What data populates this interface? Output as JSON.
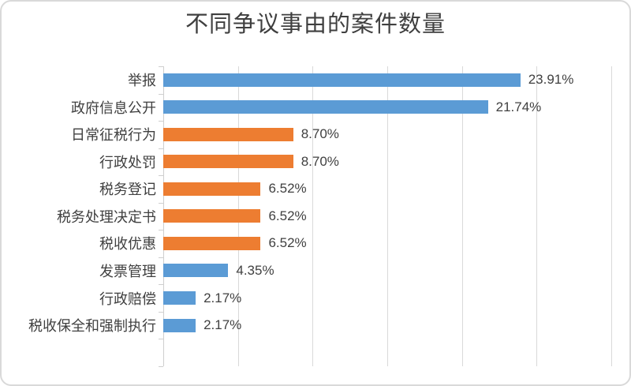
{
  "chart_data": {
    "type": "bar",
    "orientation": "horizontal",
    "title": "不同争议事由的案件数量",
    "categories": [
      "举报",
      "政府信息公开",
      "日常征税行为",
      "行政处罚",
      "税务登记",
      "税务处理决定书",
      "税收优惠",
      "发票管理",
      "行政赔偿",
      "税收保全和强制执行"
    ],
    "values": [
      23.91,
      21.74,
      8.7,
      8.7,
      6.52,
      6.52,
      6.52,
      4.35,
      2.17,
      2.17
    ],
    "value_labels": [
      "23.91%",
      "21.74%",
      "8.70%",
      "8.70%",
      "6.52%",
      "6.52%",
      "6.52%",
      "4.35%",
      "2.17%",
      "2.17%"
    ],
    "bar_colors": [
      "#5B9BD5",
      "#5B9BD5",
      "#ED7D31",
      "#ED7D31",
      "#ED7D31",
      "#ED7D31",
      "#ED7D31",
      "#5B9BD5",
      "#5B9BD5",
      "#5B9BD5"
    ],
    "xlabel": "",
    "ylabel": "",
    "xlim": [
      0,
      30
    ],
    "gridline_step_percent": 5,
    "grid": true,
    "legend_position": "none",
    "axis_tick_labels_visible": false,
    "empty_trailing_bands": 1
  },
  "colors": {
    "blue_series": "#5B9BD5",
    "orange_series": "#ED7D31",
    "gridline": "#D9D9D9",
    "axis": "#CFCFCF",
    "text": "#404040",
    "title_text": "#3F3F3F",
    "frame_border": "#D9D9D9",
    "background": "#FFFFFF"
  }
}
